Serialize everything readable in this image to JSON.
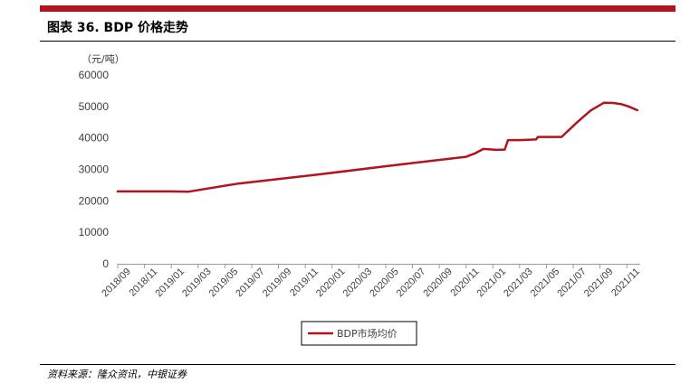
{
  "figure": {
    "title": "图表 36. BDP 价格走势",
    "source": "资料来源：隆众资讯，中银证券"
  },
  "chart_data": {
    "type": "line",
    "unit_label": "（元/吨）",
    "ylim": [
      0,
      60000
    ],
    "y_ticks": [
      "0",
      "10000",
      "20000",
      "30000",
      "40000",
      "50000",
      "60000"
    ],
    "x_ticks": [
      "2018/09",
      "2018/11",
      "2019/01",
      "2019/03",
      "2019/05",
      "2019/07",
      "2019/09",
      "2019/11",
      "2020/01",
      "2020/03",
      "2020/05",
      "2020/07",
      "2020/09",
      "2020/11",
      "2021/01",
      "2021/03",
      "2021/05",
      "2021/07",
      "2021/09",
      "2021/11"
    ],
    "grid": false,
    "legend_position": "bottom",
    "line_color": "#b3121e",
    "series": [
      {
        "name": "BDP市场均价",
        "x": [
          "2018-09-01",
          "2018-11-01",
          "2019-01-01",
          "2019-02-10",
          "2019-06-01",
          "2019-12-01",
          "2020-06-01",
          "2020-11-01",
          "2020-11-20",
          "2020-12-10",
          "2021-01-10",
          "2021-01-28",
          "2021-02-05",
          "2021-02-15",
          "2021-03-01",
          "2021-04-08",
          "2021-04-12",
          "2021-05-01",
          "2021-06-05",
          "2021-07-10",
          "2021-08-10",
          "2021-09-10",
          "2021-10-01",
          "2021-10-20",
          "2021-11-05",
          "2021-11-25"
        ],
        "y": [
          23000,
          23000,
          23000,
          22900,
          25500,
          28400,
          31500,
          34000,
          35000,
          36500,
          36200,
          36300,
          39300,
          39300,
          39300,
          39500,
          40300,
          40300,
          40300,
          45000,
          48700,
          51200,
          51100,
          50700,
          50000,
          48800
        ]
      }
    ]
  }
}
